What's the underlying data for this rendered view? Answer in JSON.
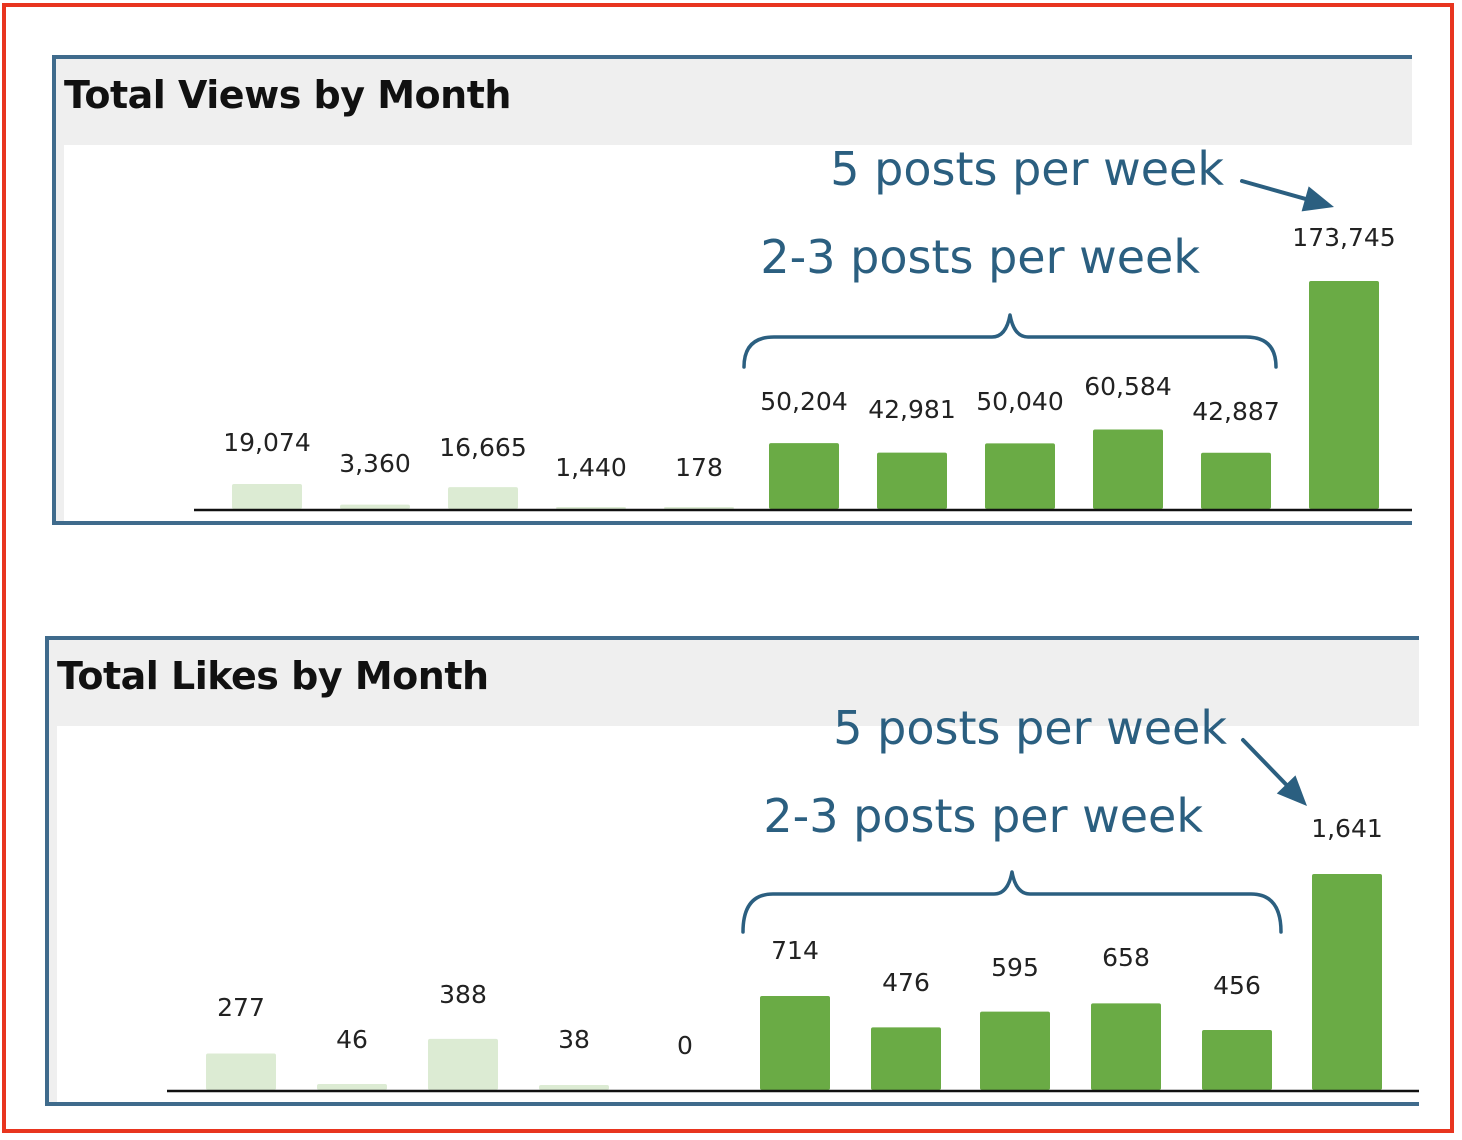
{
  "colors": {
    "frame": "#e8351f",
    "panel_border": "#3f6b8c",
    "bar_highlight": "#6aab45",
    "bar_faded": "#dcebd3",
    "annotation": "#2b5f80"
  },
  "annotations": {
    "five_posts": "5 posts per week",
    "two_three_posts": "2-3 posts per week"
  },
  "chart_data": [
    {
      "type": "bar",
      "title": "Total Views by Month",
      "values": [
        19074,
        3360,
        16665,
        1440,
        178,
        50204,
        42981,
        50040,
        60584,
        42887,
        173745
      ],
      "labels": [
        "19,074",
        "3,360",
        "16,665",
        "1,440",
        "178",
        "50,204",
        "42,981",
        "50,040",
        "60,584",
        "42,887",
        "173,745"
      ],
      "highlighted": [
        false,
        false,
        false,
        false,
        false,
        true,
        true,
        true,
        true,
        true,
        true
      ],
      "ylim": [
        0,
        173745
      ],
      "grid": false
    },
    {
      "type": "bar",
      "title": "Total Likes by Month",
      "values": [
        277,
        46,
        388,
        38,
        0,
        714,
        476,
        595,
        658,
        456,
        1641
      ],
      "labels": [
        "277",
        "46",
        "388",
        "38",
        "0",
        "714",
        "476",
        "595",
        "658",
        "456",
        "1,641"
      ],
      "highlighted": [
        false,
        false,
        false,
        false,
        false,
        true,
        true,
        true,
        true,
        true,
        true
      ],
      "ylim": [
        0,
        1641
      ],
      "grid": false
    }
  ]
}
